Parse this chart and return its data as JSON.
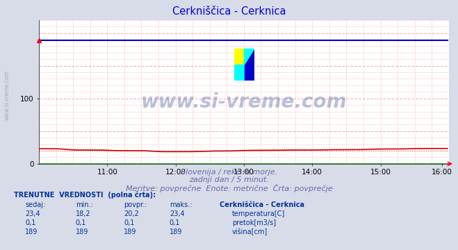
{
  "title": "Cerkniščica - Cerknica",
  "title_color": "#0000cc",
  "bg_color": "#d8dce8",
  "plot_bg_color": "#ffffff",
  "grid_color": "#ffaaaa",
  "xlabel_text1": "Slovenija / reke in morje.",
  "xlabel_text2": "zadnji dan / 5 minut.",
  "xlabel_text3": "Meritve: povprečne  Enote: metrične  Črta: povprečje",
  "xlabel_color": "#6666aa",
  "watermark": "www.si-vreme.com",
  "watermark_color": "#1a3a8a",
  "watermark_alpha": 0.3,
  "xmin": 0,
  "xmax": 288,
  "ymin": 0,
  "ymax": 220,
  "yticks": [
    0,
    100
  ],
  "xtick_labels": [
    "11:00",
    "12:00",
    "13:00",
    "14:00",
    "15:00",
    "16:00"
  ],
  "xtick_positions": [
    48,
    96,
    144,
    192,
    240,
    283
  ],
  "temp_color": "#cc0000",
  "pretok_color": "#00aa00",
  "visina_color": "#0000cc",
  "temp_avg_color": "#ff6666",
  "sidebar_text": "www.si-vreme.com",
  "sidebar_color": "#aaaaaa",
  "table_header_color": "#003399",
  "table_value_color": "#003399",
  "table_label_color": "#003399",
  "temp_sedaj": "23,4",
  "temp_min": "18,2",
  "temp_povpr": "20,2",
  "temp_maks": "23,4",
  "pretok_sedaj": "0,1",
  "pretok_min": "0,1",
  "pretok_povpr": "0,1",
  "pretok_maks": "0,1",
  "visina_sedaj": "189",
  "visina_min": "189",
  "visina_povpr": "189",
  "visina_maks": "189"
}
